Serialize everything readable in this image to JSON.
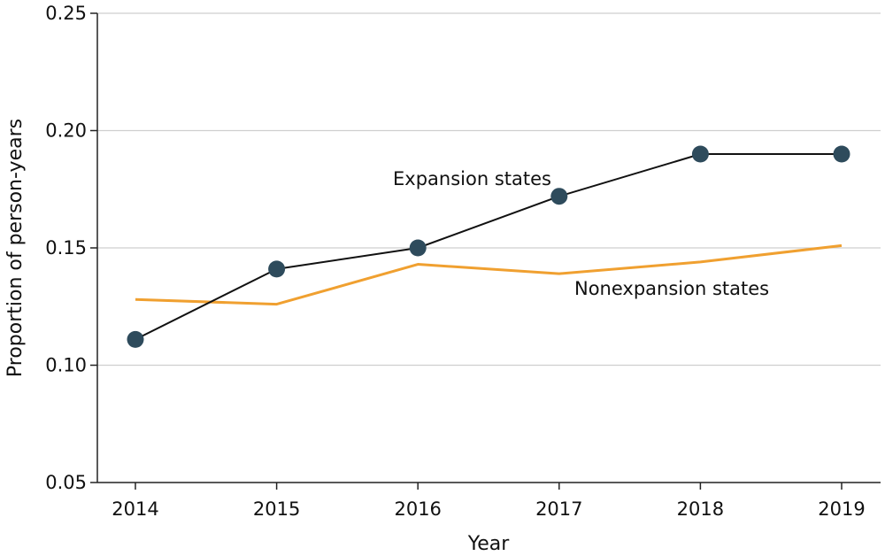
{
  "chart_data": {
    "type": "line",
    "title": "",
    "xlabel": "Year",
    "ylabel": "Proportion of person-years",
    "x": [
      "2014",
      "2015",
      "2016",
      "2017",
      "2018",
      "2019"
    ],
    "ylim": [
      0.05,
      0.25
    ],
    "yticks": [
      "0.05",
      "0.10",
      "0.15",
      "0.20",
      "0.25"
    ],
    "grid": "horizontal",
    "series": [
      {
        "name": "Expansion states",
        "values": [
          0.111,
          0.141,
          0.15,
          0.172,
          0.19,
          0.19
        ],
        "color": "#111111",
        "marker_color": "#2e4b5c",
        "markers": true
      },
      {
        "name": "Nonexpansion states",
        "values": [
          0.128,
          0.126,
          0.143,
          0.139,
          0.144,
          0.151
        ],
        "color": "#f0a030",
        "markers": false
      }
    ]
  }
}
